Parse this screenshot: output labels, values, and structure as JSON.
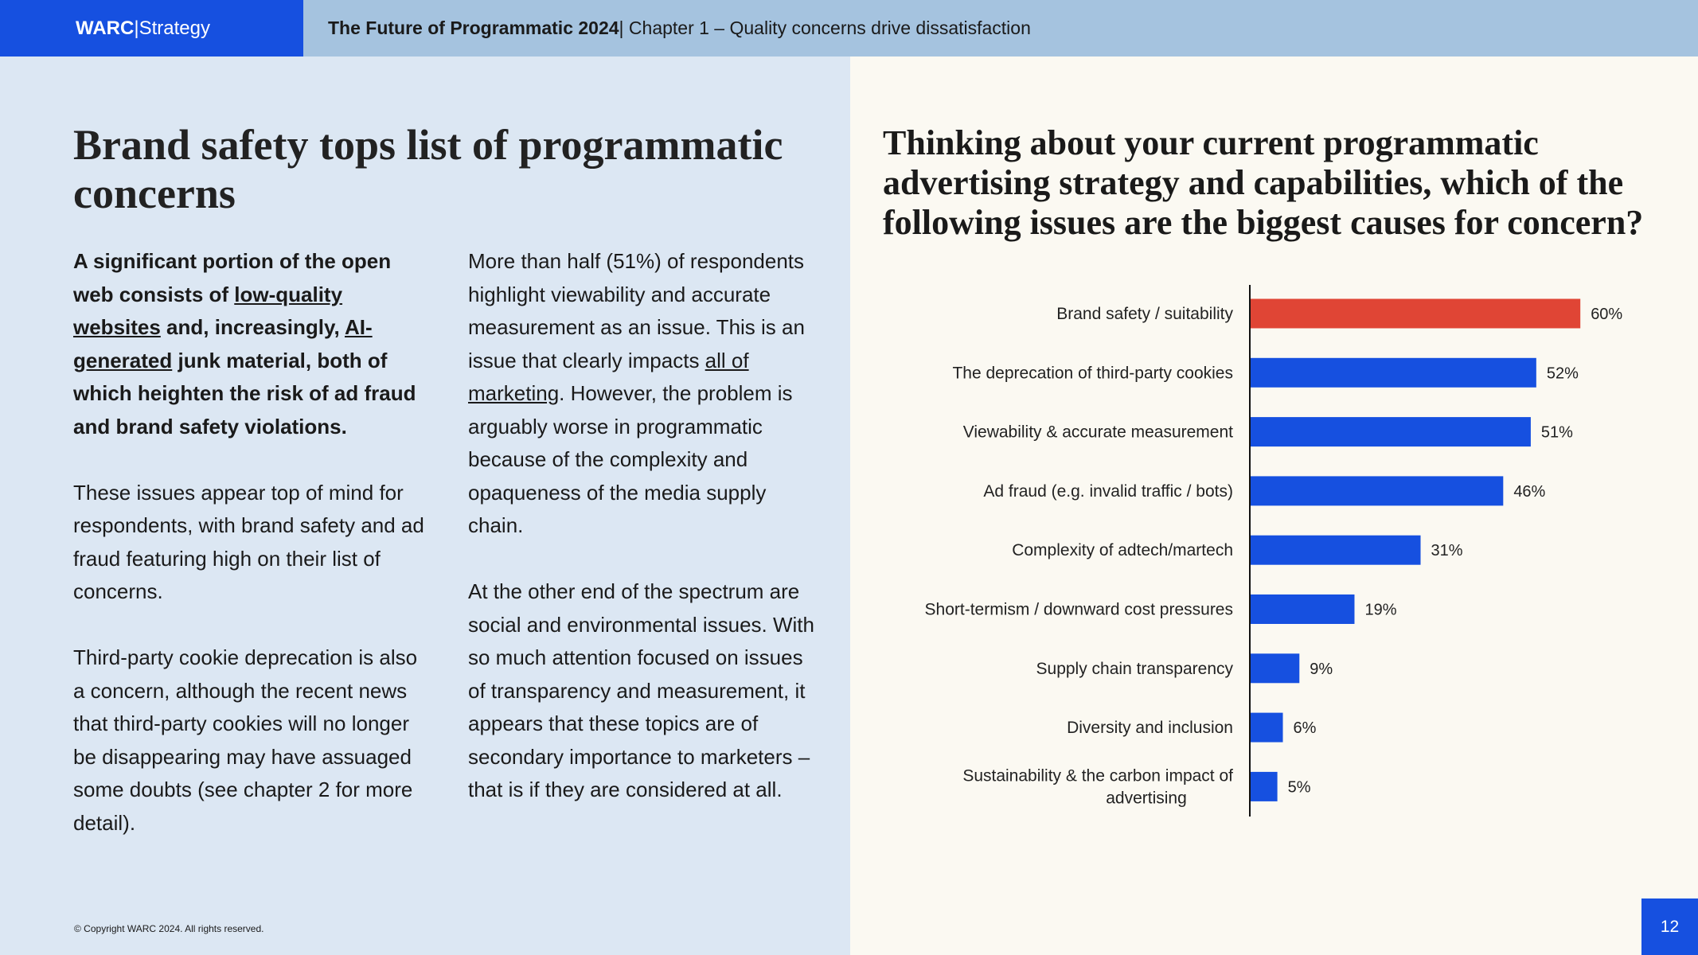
{
  "header": {
    "logo_bold": "WARC",
    "logo_sep": " | ",
    "logo_rest": "Strategy",
    "title_bold": "The Future of Programmatic 2024",
    "title_rest": " | Chapter 1 – Quality concerns drive dissatisfaction"
  },
  "left": {
    "title": "Brand safety tops list of programmatic concerns",
    "col1": {
      "p1_a": "A significant portion of the open web consists of ",
      "p1_link1": "low-quality websites",
      "p1_b": " and, increasingly, ",
      "p1_link2": "AI-generated",
      "p1_c": " junk material, both of which heighten the risk of ad fraud and brand safety violations.",
      "p2": "These issues appear top of mind for respondents, with brand safety and ad fraud featuring high on their list of concerns.",
      "p3": "Third-party cookie deprecation is also a concern, although the recent news that third-party cookies will no longer be disappearing may have assuaged some doubts (see chapter 2 for more detail)."
    },
    "col2": {
      "p1_a": "More than half (51%) of respondents highlight viewability and accurate measurement as an issue. This is an issue that clearly impacts ",
      "p1_link": "all of marketing",
      "p1_b": ". However, the problem is arguably worse in programmatic because of the complexity and opaqueness of the media supply chain.",
      "p2": "At the other end of the spectrum are social and environmental issues. With so much attention focused on issues of transparency and measurement, it appears that these topics are of secondary importance to marketers – that is if they are considered at all."
    },
    "copyright": "© Copyright WARC 2024. All rights reserved."
  },
  "page_number": "12",
  "chart_data": {
    "type": "bar",
    "orientation": "horizontal",
    "title": "Thinking about your current programmatic advertising strategy and capabilities, which of the following issues are the biggest causes for concern?",
    "categories": [
      "Brand safety / suitability",
      "The deprecation of third-party cookies",
      "Viewability & accurate measurement",
      "Ad fraud (e.g. invalid traffic / bots)",
      "Complexity of adtech/martech",
      "Short-termism / downward cost pressures",
      "Supply chain transparency",
      "Diversity and inclusion",
      "Sustainability & the carbon impact of advertising"
    ],
    "values": [
      60,
      52,
      51,
      46,
      31,
      19,
      9,
      6,
      5
    ],
    "labels": [
      "60%",
      "52%",
      "51%",
      "46%",
      "31%",
      "19%",
      "9%",
      "6%",
      "5%"
    ],
    "unit": "%",
    "colors": {
      "highlight": "#e04535",
      "default": "#1650e0"
    },
    "highlight_index": 0,
    "grid": false
  }
}
